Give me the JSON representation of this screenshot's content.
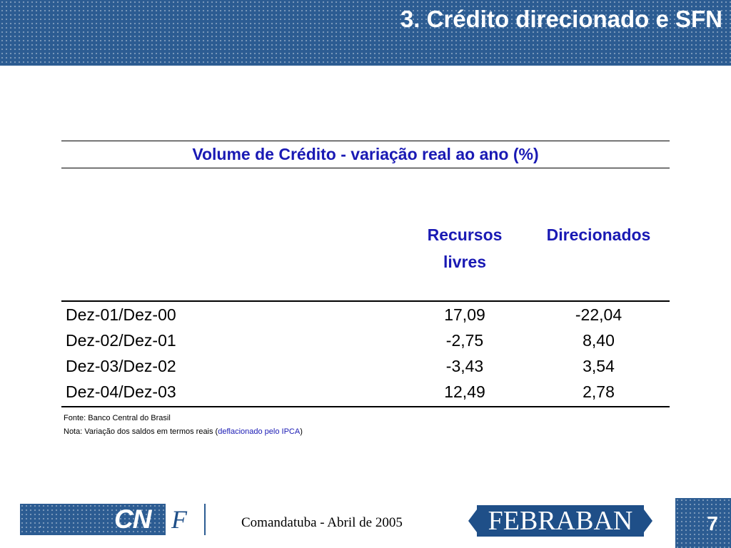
{
  "slide": {
    "title": "3. Crédito direcionado e SFN"
  },
  "table": {
    "title": "Volume de Crédito - variação real ao ano (%)",
    "col1_header_line1": "Recursos",
    "col1_header_line2": "livres",
    "col2_header": "Direcionados",
    "rows": [
      {
        "label": "Dez-01/Dez-00",
        "livres": "17,09",
        "direcionados": "-22,04"
      },
      {
        "label": "Dez-02/Dez-01",
        "livres": "-2,75",
        "direcionados": "8,40"
      },
      {
        "label": "Dez-03/Dez-02",
        "livres": "-3,43",
        "direcionados": "3,54"
      },
      {
        "label": "Dez-04/Dez-03",
        "livres": "12,49",
        "direcionados": "2,78"
      }
    ],
    "source": "Fonte: Banco Central do Brasil",
    "note_prefix": "Nota: Variação dos saldos em termos reais (",
    "note_highlight": "deflacionado pelo IPCA",
    "note_suffix": ")"
  },
  "footer": {
    "dot": ".",
    "cnf_logo_text": "CN",
    "cnf_logo_f": "F",
    "event": "Comandatuba - Abril de 2005",
    "febraban_logo": "FEBRABAN",
    "page_number": "7"
  },
  "colors": {
    "accent_blue": "#1a1ab4",
    "header_blue": "#2c5c92",
    "logo_blue": "#1f4f88"
  }
}
